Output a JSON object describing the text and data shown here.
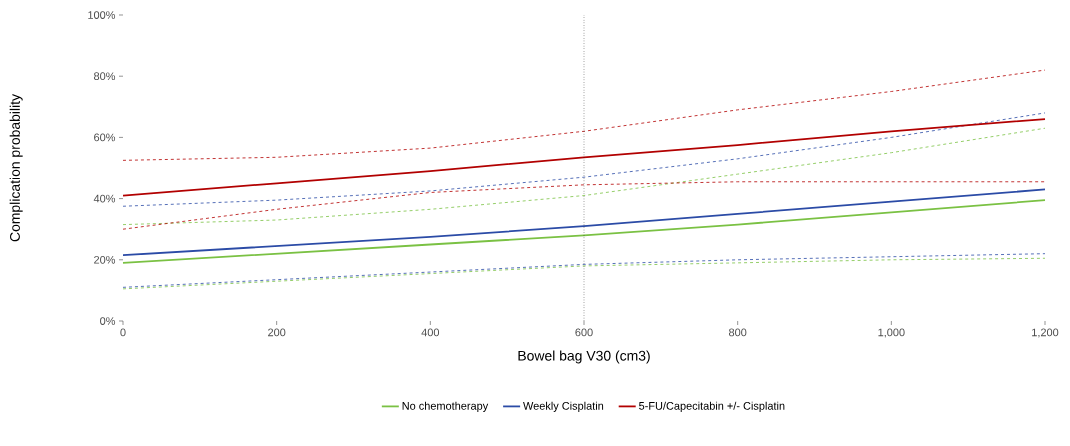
{
  "chart_data": {
    "type": "line",
    "xlabel": "Bowel bag V30 (cm3)",
    "ylabel": "Complication probability",
    "x": [
      0,
      200,
      400,
      600,
      800,
      1000,
      1200
    ],
    "series": [
      {
        "color": "#7ac143",
        "line_style": "dashed",
        "values": [
          10.5,
          13,
          15.5,
          18,
          19,
          20,
          20.5
        ]
      },
      {
        "color": "#7ac143",
        "line_style": "dashed",
        "values": [
          31.5,
          33,
          36.5,
          41,
          48,
          55,
          63
        ]
      },
      {
        "color": "#2b4ba6",
        "line_style": "dashed",
        "values": [
          11,
          13.5,
          16,
          18.5,
          20,
          21,
          22
        ]
      },
      {
        "color": "#2b4ba6",
        "line_style": "dashed",
        "values": [
          37.5,
          39.5,
          42.5,
          47,
          53,
          60,
          68
        ]
      },
      {
        "color": "#b20000",
        "line_style": "dashed",
        "values": [
          30,
          36.5,
          42,
          44.5,
          45.5,
          45.5,
          45.5
        ]
      },
      {
        "color": "#b20000",
        "line_style": "dashed",
        "values": [
          52.5,
          53.5,
          56.5,
          62,
          69,
          75,
          82
        ]
      },
      {
        "name": "No chemotherapy",
        "color": "#7ac143",
        "line_style": "solid",
        "values": [
          19,
          22,
          25,
          28,
          31.5,
          35.5,
          39.5
        ]
      },
      {
        "name": "Weekly Cisplatin",
        "color": "#2b4ba6",
        "line_style": "solid",
        "values": [
          21.5,
          24.5,
          27.5,
          31,
          35,
          39,
          43
        ]
      },
      {
        "name": "5-FU/Capecitabin +/- Cisplatin",
        "color": "#b20000",
        "line_style": "solid",
        "values": [
          41,
          45,
          49,
          53.5,
          57.5,
          62,
          66
        ]
      }
    ],
    "xlim": [
      0,
      1200
    ],
    "ylim": [
      0,
      100
    ],
    "xticks": [
      0,
      200,
      400,
      600,
      800,
      {
        "value": 1000,
        "label": "1,000"
      },
      {
        "value": 1200,
        "label": "1,200"
      }
    ],
    "yticks": [
      {
        "value": 0,
        "label": "0%"
      },
      {
        "value": 20,
        "label": "20%"
      },
      {
        "value": 40,
        "label": "40%"
      },
      {
        "value": 60,
        "label": "60%"
      },
      {
        "value": 80,
        "label": "80%"
      },
      {
        "value": 100,
        "label": "100%"
      }
    ],
    "ref_lines": [
      {
        "axis": "x",
        "value": 600,
        "line_style": "dotted"
      }
    ],
    "grid": false,
    "legend": "bottom"
  }
}
